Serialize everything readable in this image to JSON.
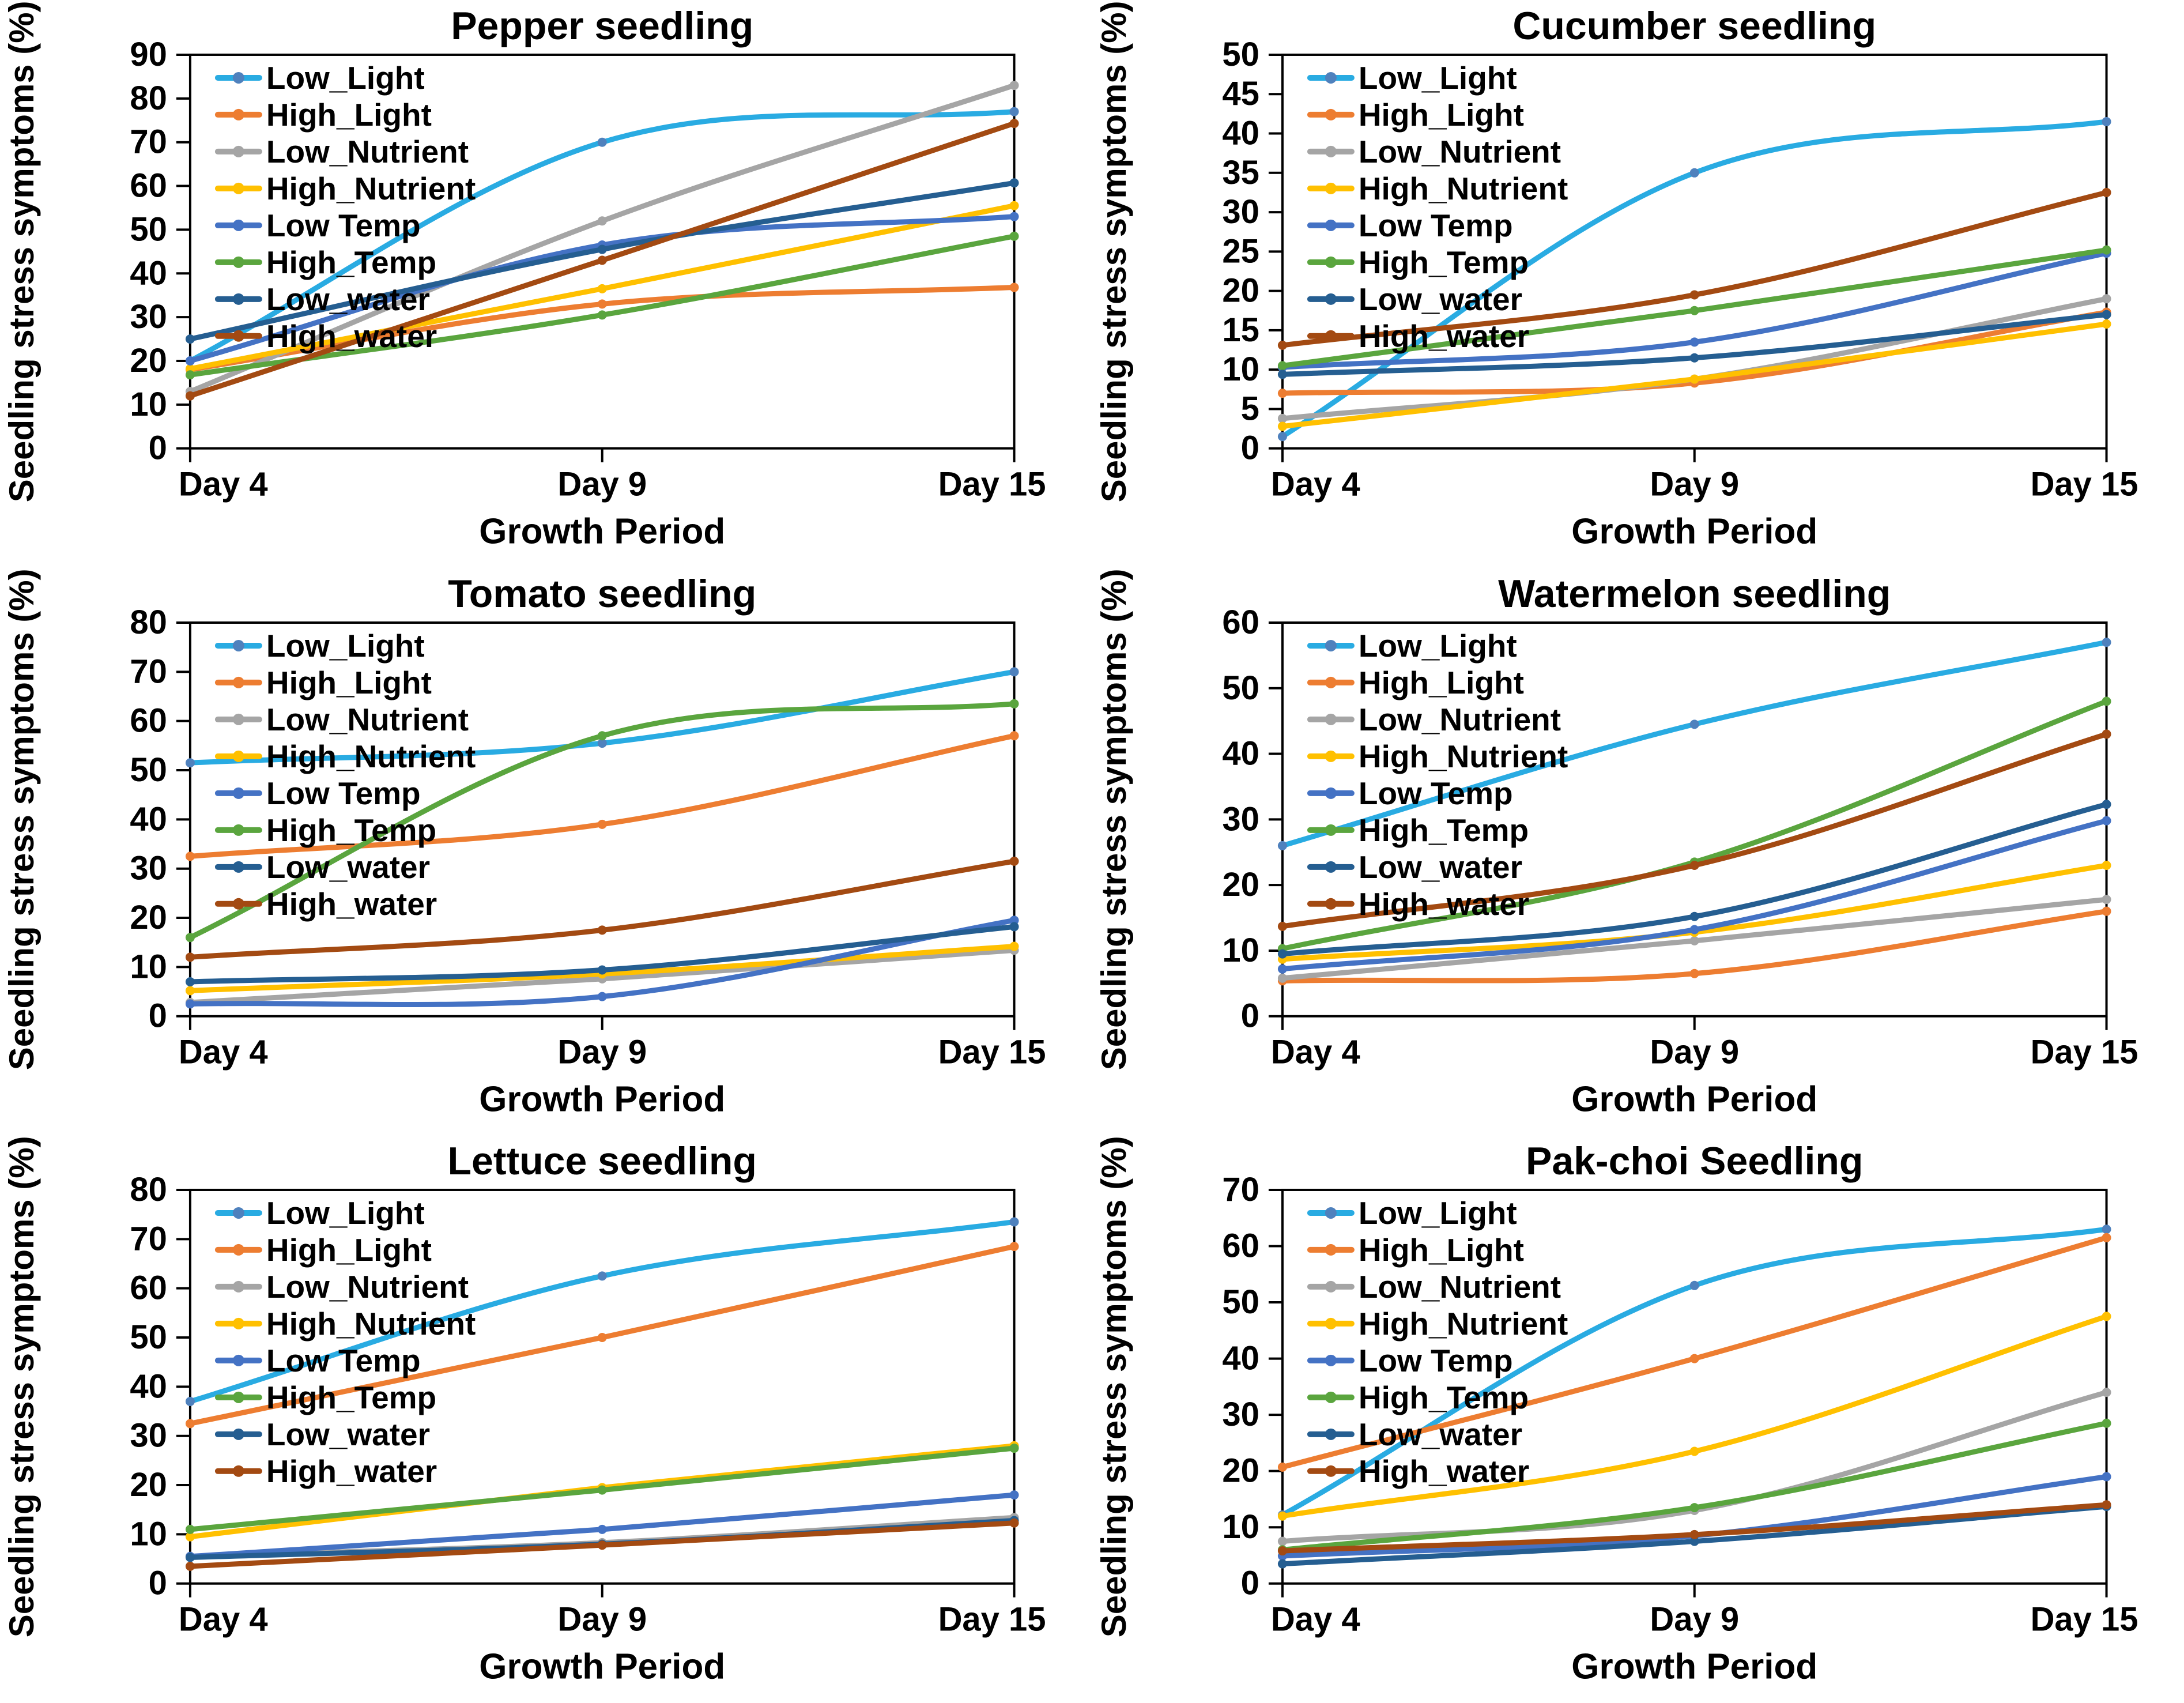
{
  "figure": {
    "ylabel": "Seedling stress symptoms (%)",
    "xlabel": "Growth Period",
    "categories": [
      "Day 4",
      "Day 9",
      "Day 15"
    ],
    "legend_labels": [
      "Low_Light",
      "High_Light",
      "Low_Nutrient",
      "High_Nutrient",
      "Low Temp",
      "High_Temp",
      "Low_water",
      "High_water"
    ],
    "colors": {
      "Low_Light": "#29ABE2",
      "High_Light": "#ED7D31",
      "Low_Nutrient": "#A5A5A5",
      "High_Nutrient": "#FFC000",
      "Low Temp": "#4472C4",
      "High_Temp": "#5AA53E",
      "Low_water": "#255E91",
      "High_water": "#A34A12"
    },
    "marker_color_overrides": {
      "Low_Light": "#4F81BD"
    },
    "axis_color": "#000000",
    "background_color": "#FFFFFF"
  },
  "chart_data": [
    {
      "type": "line",
      "title": "Pepper seedling",
      "xlabel": "Growth Period",
      "ylabel": "Seedling stress symptoms (%)",
      "categories": [
        "Day 4",
        "Day 9",
        "Day 15"
      ],
      "ylim": [
        0,
        90
      ],
      "ytick_step": 10,
      "grid": false,
      "legend_position": "top-left-inside",
      "series": [
        {
          "name": "Low_Light",
          "values": [
            20.0,
            70.0,
            77.0
          ]
        },
        {
          "name": "High_Light",
          "values": [
            18.0,
            33.0,
            36.8
          ]
        },
        {
          "name": "Low_Nutrient",
          "values": [
            13.0,
            52.0,
            83.0
          ]
        },
        {
          "name": "High_Nutrient",
          "values": [
            18.2,
            36.5,
            55.5
          ]
        },
        {
          "name": "Low Temp",
          "values": [
            20.0,
            46.5,
            53.0
          ]
        },
        {
          "name": "High_Temp",
          "values": [
            16.8,
            30.5,
            48.5
          ]
        },
        {
          "name": "Low_water",
          "values": [
            25.0,
            45.5,
            60.7
          ]
        },
        {
          "name": "High_water",
          "values": [
            12.0,
            43.0,
            74.3
          ]
        }
      ]
    },
    {
      "type": "line",
      "title": "Cucumber seedling",
      "xlabel": "Growth Period",
      "ylabel": "Seedling stress symptoms (%)",
      "categories": [
        "Day 4",
        "Day 9",
        "Day 15"
      ],
      "ylim": [
        0,
        50
      ],
      "ytick_step": 5,
      "grid": false,
      "legend_position": "top-left-inside",
      "series": [
        {
          "name": "Low_Light",
          "values": [
            1.5,
            35.0,
            41.5
          ]
        },
        {
          "name": "High_Light",
          "values": [
            7.0,
            8.3,
            17.3
          ]
        },
        {
          "name": "Low_Nutrient",
          "values": [
            3.8,
            8.8,
            19.0
          ]
        },
        {
          "name": "High_Nutrient",
          "values": [
            2.8,
            8.8,
            15.8
          ]
        },
        {
          "name": "Low Temp",
          "values": [
            10.3,
            13.5,
            24.8
          ]
        },
        {
          "name": "High_Temp",
          "values": [
            10.5,
            17.5,
            25.2
          ]
        },
        {
          "name": "Low_water",
          "values": [
            9.4,
            11.5,
            17.0
          ]
        },
        {
          "name": "High_water",
          "values": [
            13.1,
            19.5,
            32.5
          ]
        }
      ]
    },
    {
      "type": "line",
      "title": "Tomato seedling",
      "xlabel": "Growth Period",
      "ylabel": "Seedling stress symptoms (%)",
      "categories": [
        "Day 4",
        "Day 9",
        "Day 15"
      ],
      "ylim": [
        0,
        80
      ],
      "ytick_step": 10,
      "grid": false,
      "legend_position": "top-left-inside",
      "series": [
        {
          "name": "Low_Light",
          "values": [
            51.5,
            55.5,
            70.0
          ]
        },
        {
          "name": "High_Light",
          "values": [
            32.5,
            39.0,
            57.0
          ]
        },
        {
          "name": "Low_Nutrient",
          "values": [
            2.8,
            7.6,
            13.4
          ]
        },
        {
          "name": "High_Nutrient",
          "values": [
            5.2,
            8.6,
            14.2
          ]
        },
        {
          "name": "Low Temp",
          "values": [
            2.5,
            4.0,
            19.5
          ]
        },
        {
          "name": "High_Temp",
          "values": [
            16.0,
            57.0,
            63.5
          ]
        },
        {
          "name": "Low_water",
          "values": [
            7.0,
            9.4,
            18.2
          ]
        },
        {
          "name": "High_water",
          "values": [
            12.0,
            17.5,
            31.5
          ]
        }
      ]
    },
    {
      "type": "line",
      "title": "Watermelon seedling",
      "xlabel": "Growth Period",
      "ylabel": "Seedling stress symptoms (%)",
      "categories": [
        "Day 4",
        "Day 9",
        "Day 15"
      ],
      "ylim": [
        0,
        60
      ],
      "ytick_step": 10,
      "grid": false,
      "legend_position": "top-left-inside",
      "series": [
        {
          "name": "Low_Light",
          "values": [
            26.0,
            44.5,
            57.0
          ]
        },
        {
          "name": "High_Light",
          "values": [
            5.4,
            6.5,
            16.0
          ]
        },
        {
          "name": "Low_Nutrient",
          "values": [
            5.8,
            11.5,
            17.8
          ]
        },
        {
          "name": "High_Nutrient",
          "values": [
            8.7,
            12.8,
            23.0
          ]
        },
        {
          "name": "Low Temp",
          "values": [
            7.2,
            13.2,
            29.8
          ]
        },
        {
          "name": "High_Temp",
          "values": [
            10.3,
            23.5,
            48.0
          ]
        },
        {
          "name": "Low_water",
          "values": [
            9.5,
            15.2,
            32.3
          ]
        },
        {
          "name": "High_water",
          "values": [
            13.7,
            23.0,
            43.0
          ]
        }
      ]
    },
    {
      "type": "line",
      "title": "Lettuce seedling",
      "xlabel": "Growth Period",
      "ylabel": "Seedling stress symptoms (%)",
      "categories": [
        "Day 4",
        "Day 9",
        "Day 15"
      ],
      "ylim": [
        0,
        80
      ],
      "ytick_step": 10,
      "grid": false,
      "legend_position": "top-left-inside",
      "series": [
        {
          "name": "Low_Light",
          "values": [
            37.0,
            62.5,
            73.5
          ]
        },
        {
          "name": "High_Light",
          "values": [
            32.5,
            50.0,
            68.5
          ]
        },
        {
          "name": "Low_Nutrient",
          "values": [
            5.5,
            8.3,
            13.4
          ]
        },
        {
          "name": "High_Nutrient",
          "values": [
            9.5,
            19.5,
            28.0
          ]
        },
        {
          "name": "Low Temp",
          "values": [
            5.5,
            11.0,
            18.0
          ]
        },
        {
          "name": "High_Temp",
          "values": [
            11.0,
            19.0,
            27.5
          ]
        },
        {
          "name": "Low_water",
          "values": [
            5.3,
            8.0,
            12.8
          ]
        },
        {
          "name": "High_water",
          "values": [
            3.5,
            7.8,
            12.3
          ]
        }
      ]
    },
    {
      "type": "line",
      "title": "Pak-choi Seedling",
      "xlabel": "Growth Period",
      "ylabel": "Seedling stress symptoms (%)",
      "categories": [
        "Day 4",
        "Day 9",
        "Day 15"
      ],
      "ylim": [
        0,
        70
      ],
      "ytick_step": 10,
      "grid": false,
      "legend_position": "top-left-inside",
      "series": [
        {
          "name": "Low_Light",
          "values": [
            12.2,
            53.0,
            63.0
          ]
        },
        {
          "name": "High_Light",
          "values": [
            20.7,
            40.0,
            61.5
          ]
        },
        {
          "name": "Low_Nutrient",
          "values": [
            7.5,
            13.0,
            34.0
          ]
        },
        {
          "name": "High_Nutrient",
          "values": [
            12.0,
            23.5,
            47.5
          ]
        },
        {
          "name": "Low Temp",
          "values": [
            4.9,
            8.5,
            19.0
          ]
        },
        {
          "name": "High_Temp",
          "values": [
            6.0,
            13.5,
            28.5
          ]
        },
        {
          "name": "Low_water",
          "values": [
            3.5,
            7.5,
            13.7
          ]
        },
        {
          "name": "High_water",
          "values": [
            5.8,
            8.7,
            14.0
          ]
        }
      ]
    }
  ]
}
